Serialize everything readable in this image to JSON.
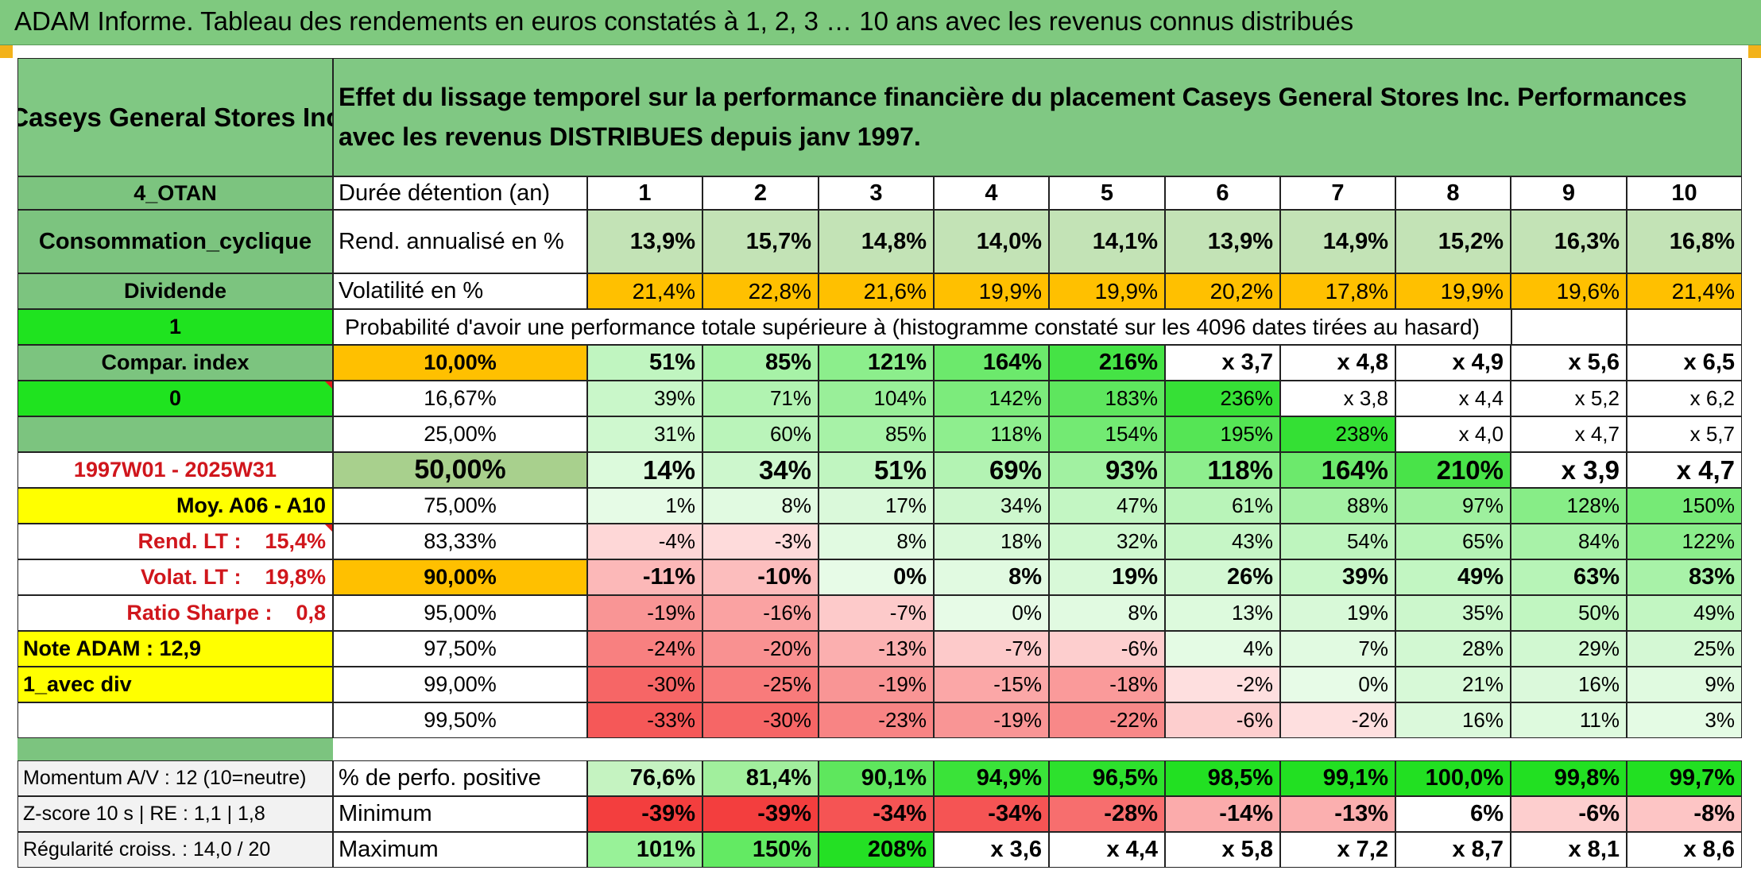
{
  "report_title": "ADAM Informe. Tableau des rendements en euros constatés à 1, 2, 3 … 10 ans avec les revenus connus distribués",
  "header": {
    "company": "Caseys General Stores Inc",
    "description": "Effet du lissage temporel sur la performance financière du placement Caseys General Stores Inc. Performances avec les revenus DISTRIBUES depuis janv 1997."
  },
  "left_panel": {
    "code": "4_OTAN",
    "sector": "Consommation_cyclique",
    "income_type": "Dividende",
    "flag_value": "1",
    "compar_index": "Compar. index",
    "compar_value": "0",
    "period": "1997W01 - 2025W31",
    "moy": "Moy. A06 - A10",
    "rend_lt": "Rend. LT :    15,4%",
    "volat_lt": "Volat. LT :    19,8%",
    "ratio_sharpe": "Ratio Sharpe :    0,8",
    "note_adam": "Note ADAM : 12,9",
    "avec_div": "1_avec div",
    "momentum": "Momentum A/V : 12 (10=neutre)",
    "zscore": "Z-score 10 s | RE : 1,1 | 1,8",
    "regularite": "Régularité croiss. : 14,0 / 20"
  },
  "labels": {
    "duree": "Durée détention (an)",
    "rend": "Rend. annualisé en %",
    "volat": "Volatilité en %",
    "proba": "Probabilité d'avoir une performance totale supérieure à (histogramme constaté sur les 4096 dates tirées au hasard)",
    "perf_pos": "% de perfo. positive",
    "minimum": "Minimum",
    "maximum": "Maximum"
  },
  "years": [
    "1",
    "2",
    "3",
    "4",
    "5",
    "6",
    "7",
    "8",
    "9",
    "10"
  ],
  "rend_annualise": [
    "13,9%",
    "15,7%",
    "14,8%",
    "14,0%",
    "14,1%",
    "13,9%",
    "14,9%",
    "15,2%",
    "16,3%",
    "16,8%"
  ],
  "volatilite": [
    "21,4%",
    "22,8%",
    "21,6%",
    "19,9%",
    "19,9%",
    "20,2%",
    "17,8%",
    "19,9%",
    "19,6%",
    "21,4%"
  ],
  "prob_rows": [
    {
      "pct": "10,00%",
      "vals": [
        "51%",
        "85%",
        "121%",
        "164%",
        "216%",
        "x 3,7",
        "x 4,8",
        "x 4,9",
        "x 5,6",
        "x 6,5"
      ]
    },
    {
      "pct": "16,67%",
      "vals": [
        "39%",
        "71%",
        "104%",
        "142%",
        "183%",
        "236%",
        "x 3,8",
        "x 4,4",
        "x 5,2",
        "x 6,2"
      ]
    },
    {
      "pct": "25,00%",
      "vals": [
        "31%",
        "60%",
        "85%",
        "118%",
        "154%",
        "195%",
        "238%",
        "x 4,0",
        "x 4,7",
        "x 5,7"
      ]
    },
    {
      "pct": "50,00%",
      "vals": [
        "14%",
        "34%",
        "51%",
        "69%",
        "93%",
        "118%",
        "164%",
        "210%",
        "x 3,9",
        "x 4,7"
      ]
    },
    {
      "pct": "75,00%",
      "vals": [
        "1%",
        "8%",
        "17%",
        "34%",
        "47%",
        "61%",
        "88%",
        "97%",
        "128%",
        "150%"
      ]
    },
    {
      "pct": "83,33%",
      "vals": [
        "-4%",
        "-3%",
        "8%",
        "18%",
        "32%",
        "43%",
        "54%",
        "65%",
        "84%",
        "122%"
      ]
    },
    {
      "pct": "90,00%",
      "vals": [
        "-11%",
        "-10%",
        "0%",
        "8%",
        "19%",
        "26%",
        "39%",
        "49%",
        "63%",
        "83%"
      ]
    },
    {
      "pct": "95,00%",
      "vals": [
        "-19%",
        "-16%",
        "-7%",
        "0%",
        "8%",
        "13%",
        "19%",
        "35%",
        "50%",
        "49%"
      ]
    },
    {
      "pct": "97,50%",
      "vals": [
        "-24%",
        "-20%",
        "-13%",
        "-7%",
        "-6%",
        "4%",
        "7%",
        "28%",
        "29%",
        "25%"
      ]
    },
    {
      "pct": "99,00%",
      "vals": [
        "-30%",
        "-25%",
        "-19%",
        "-15%",
        "-18%",
        "-2%",
        "0%",
        "21%",
        "16%",
        "9%"
      ]
    },
    {
      "pct": "99,50%",
      "vals": [
        "-33%",
        "-30%",
        "-23%",
        "-19%",
        "-22%",
        "-6%",
        "-2%",
        "16%",
        "11%",
        "3%"
      ]
    }
  ],
  "perf_positive": [
    "76,6%",
    "81,4%",
    "90,1%",
    "94,9%",
    "96,5%",
    "98,5%",
    "99,1%",
    "100,0%",
    "99,8%",
    "99,7%"
  ],
  "minimum": [
    "-39%",
    "-39%",
    "-34%",
    "-34%",
    "-28%",
    "-14%",
    "-13%",
    "6%",
    "-6%",
    "-8%"
  ],
  "maximum": [
    "101%",
    "150%",
    "208%",
    "x 3,6",
    "x 4,4",
    "x 5,8",
    "x 7,2",
    "x 8,7",
    "x 8,1",
    "x 8,6"
  ],
  "colors": {
    "title_green": "#7fc97f",
    "header_green": "#80c883",
    "panel_green": "#7cc47f",
    "bright_green": "#1fe31f",
    "rend_green": "#c3e3b6",
    "orange": "#ffc000",
    "yellow": "#ffff00",
    "median_green": "#a8d08d",
    "red_text": "#d0161c"
  }
}
